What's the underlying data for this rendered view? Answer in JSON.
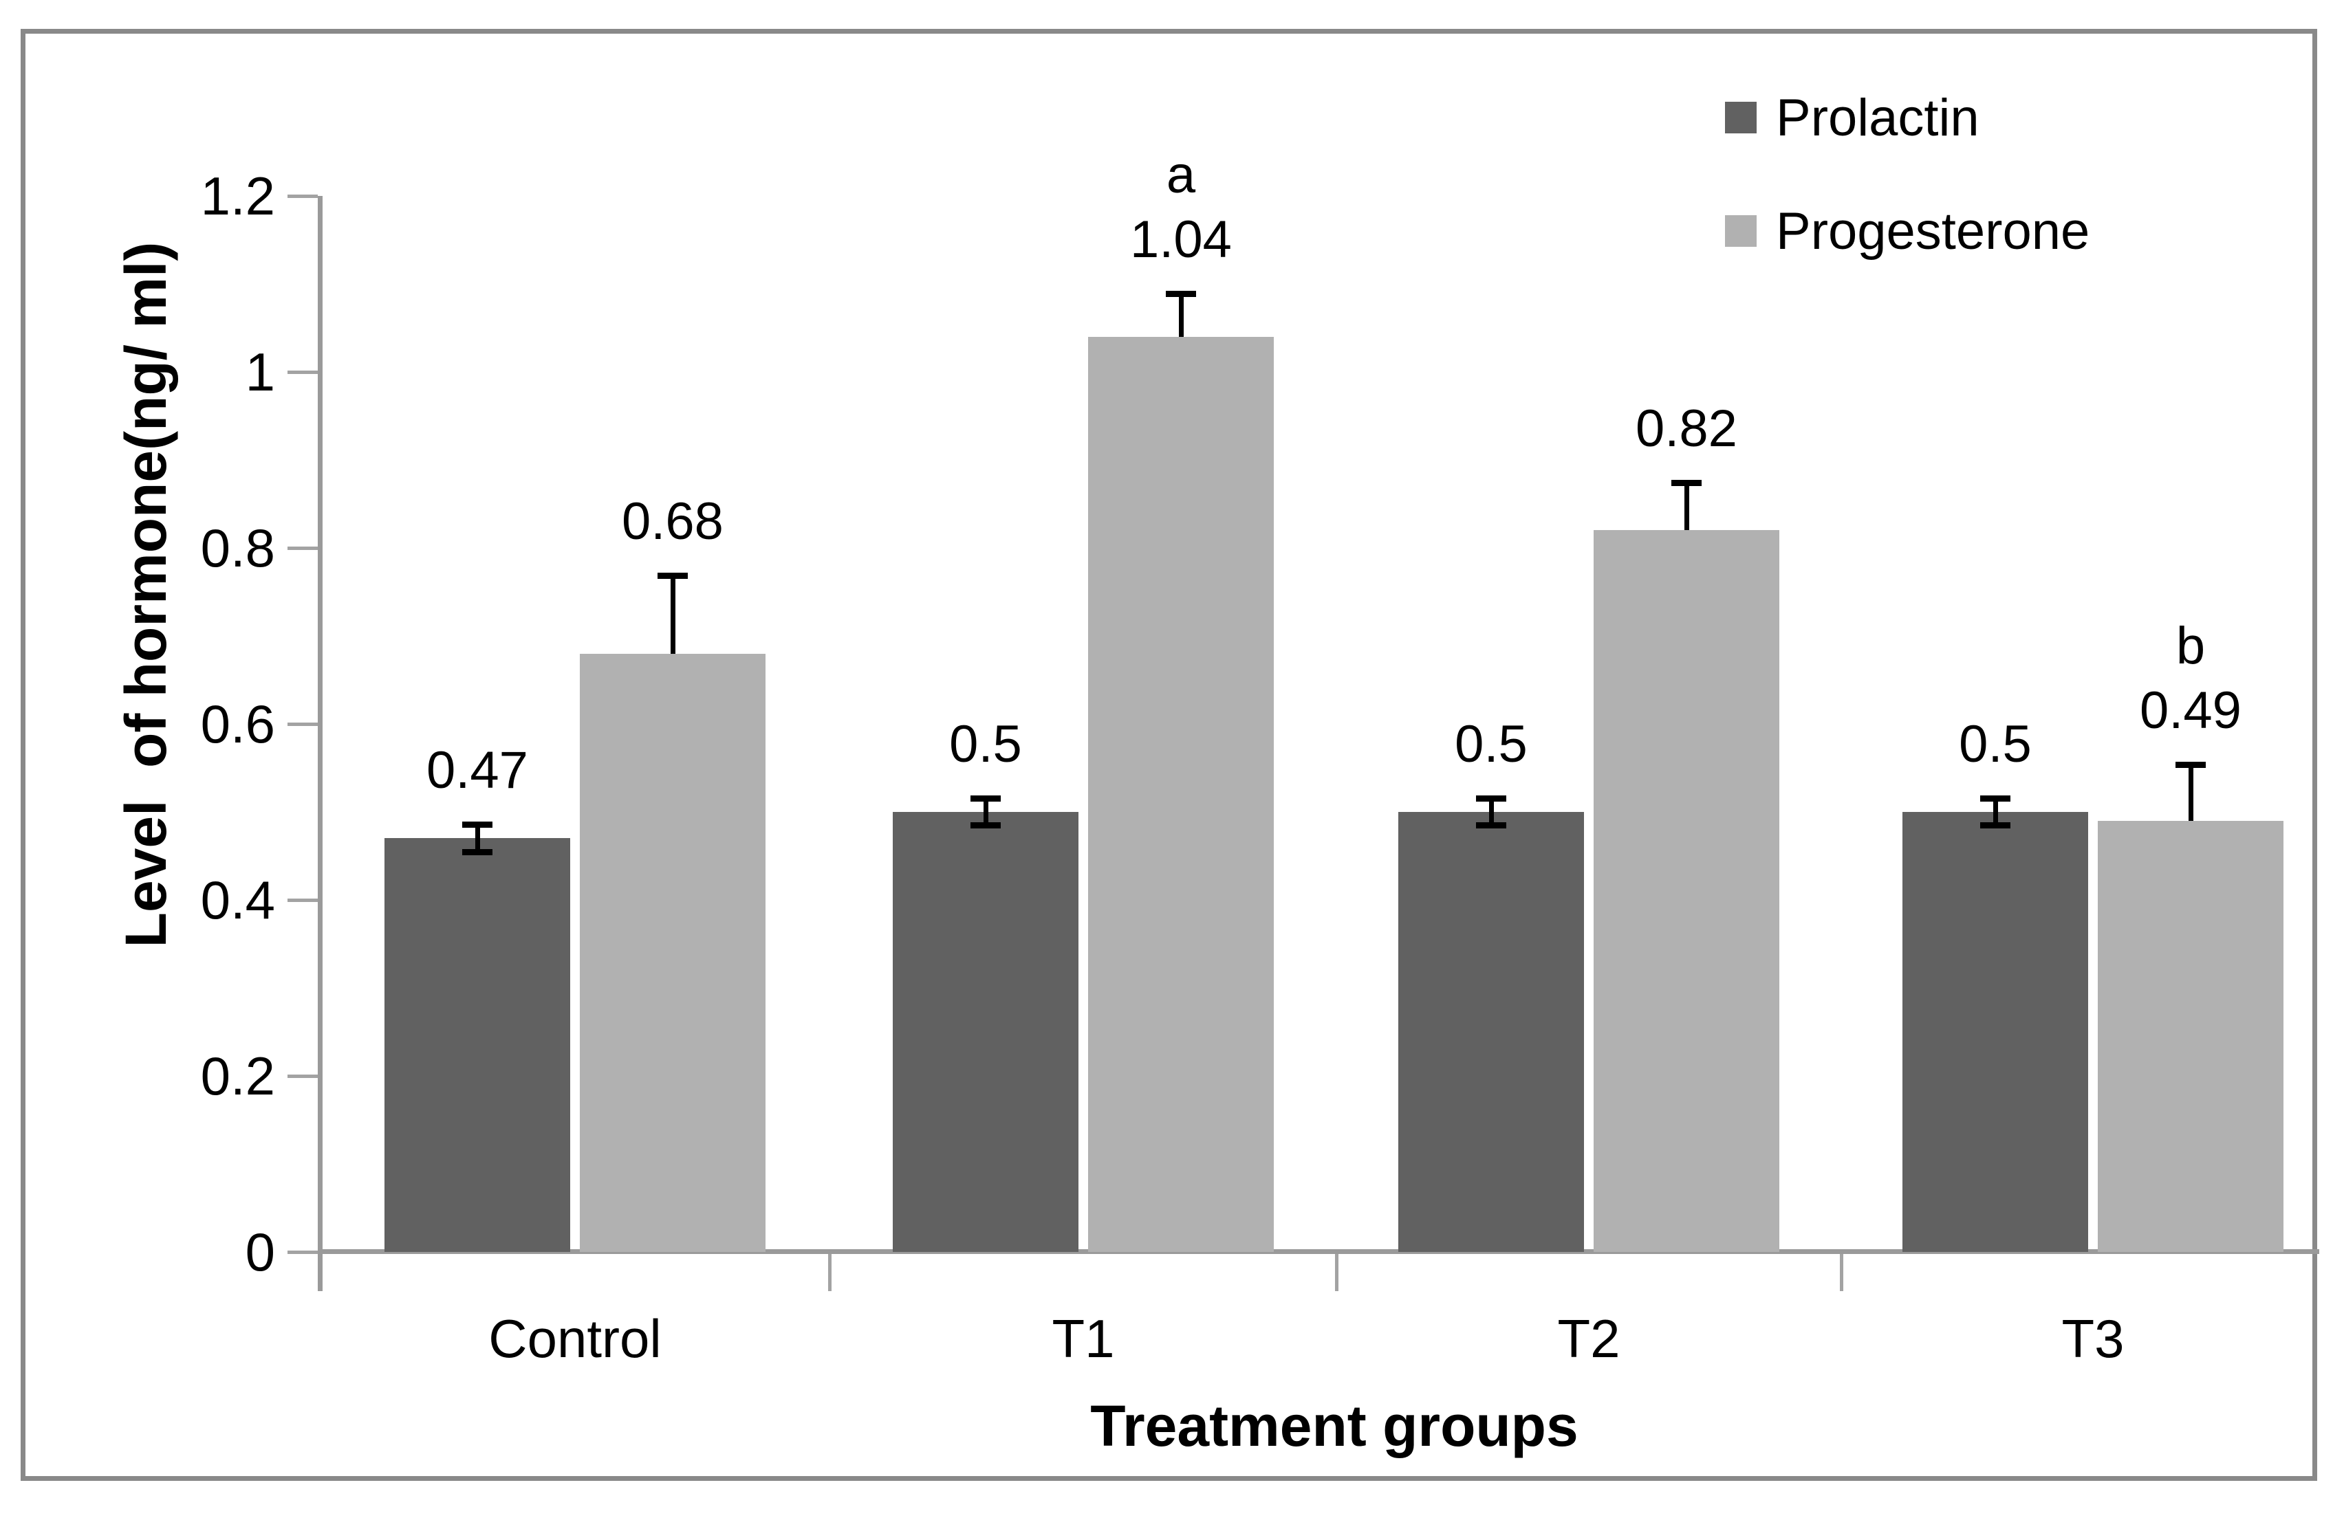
{
  "chart_data": {
    "type": "bar",
    "categories": [
      "Control",
      "T1",
      "T2",
      "T3"
    ],
    "series": [
      {
        "name": "Prolactin",
        "color": "#616161",
        "values": [
          0.47,
          0.5,
          0.5,
          0.5
        ],
        "data_labels": [
          "0.47",
          "0.5",
          "0.5",
          "0.5"
        ],
        "errors": [
          0.012,
          0.012,
          0.012,
          0.012
        ],
        "error_style": "both"
      },
      {
        "name": "Progesterone",
        "color": "#b1b1b1",
        "values": [
          0.68,
          1.04,
          0.82,
          0.49
        ],
        "data_labels": [
          "0.68",
          "1.04",
          "0.82",
          "0.49"
        ],
        "errors": [
          0.085,
          0.045,
          0.05,
          0.06
        ],
        "error_style": "up"
      }
    ],
    "annotations": [
      {
        "series": "Progesterone",
        "category": "T1",
        "text": "a"
      },
      {
        "series": "Progesterone",
        "category": "T3",
        "text": "b"
      }
    ],
    "title": "",
    "xlabel": "Treatment groups",
    "ylabel": "Level  of hormone(ng/ ml)",
    "ylim": [
      0,
      1.2
    ],
    "yticks": [
      0,
      0.2,
      0.4,
      0.6,
      0.8,
      1,
      1.2
    ],
    "ytick_labels": [
      "0",
      "0.2",
      "0.4",
      "0.6",
      "0.8",
      "1",
      "1.2"
    ],
    "grid": false,
    "legend_position": "top-right",
    "colors": {
      "axis": "#9a9a9a",
      "tick": "#a3a3a3",
      "frame_border": "#898989",
      "error_bar": "#000000",
      "text": "#000000"
    }
  }
}
